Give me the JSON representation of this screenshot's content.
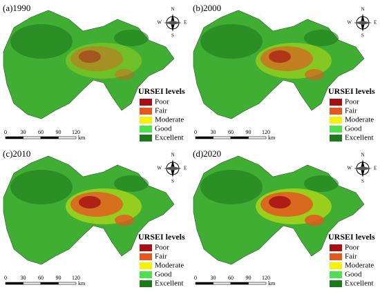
{
  "panels": [
    {
      "label": "(a)1990",
      "legend_title": "URSEI levels",
      "legend": [
        {
          "name": "Poor",
          "color": "#a50f15"
        },
        {
          "name": "Fair",
          "color": "#e4571e"
        },
        {
          "name": "Moderate",
          "color": "#f2f20a"
        },
        {
          "name": "Good",
          "color": "#4fe04f"
        },
        {
          "name": "Excellent",
          "color": "#1c7a1c"
        }
      ],
      "scale": {
        "labels": [
          0,
          30,
          60,
          90,
          120
        ],
        "unit": "km"
      },
      "compass": [
        "N",
        "E",
        "S",
        "W"
      ]
    },
    {
      "label": "(b)2000",
      "legend_title": "URSEI levels",
      "legend": [
        {
          "name": "Poor",
          "color": "#a50f15"
        },
        {
          "name": "Fair",
          "color": "#e4571e"
        },
        {
          "name": "Moderate",
          "color": "#f2f20a"
        },
        {
          "name": "Good",
          "color": "#4fe04f"
        },
        {
          "name": "Excellent",
          "color": "#1c7a1c"
        }
      ],
      "scale": {
        "labels": [
          0,
          30,
          60,
          90,
          120
        ],
        "unit": "km"
      },
      "compass": [
        "N",
        "E",
        "S",
        "W"
      ]
    },
    {
      "label": "(c)2010",
      "legend_title": "URSEI levels",
      "legend": [
        {
          "name": "Poor",
          "color": "#a50f15"
        },
        {
          "name": "Fair",
          "color": "#e4571e"
        },
        {
          "name": "Moderate",
          "color": "#f2f20a"
        },
        {
          "name": "Good",
          "color": "#4fe04f"
        },
        {
          "name": "Excellent",
          "color": "#1c7a1c"
        }
      ],
      "scale": {
        "labels": [
          0,
          30,
          60,
          90,
          120
        ],
        "unit": "km"
      },
      "compass": [
        "N",
        "E",
        "S",
        "W"
      ]
    },
    {
      "label": "(d)2020",
      "legend_title": "URSEI levels",
      "legend": [
        {
          "name": "Poor",
          "color": "#a50f15"
        },
        {
          "name": "Fair",
          "color": "#e4571e"
        },
        {
          "name": "Moderate",
          "color": "#f2f20a"
        },
        {
          "name": "Good",
          "color": "#4fe04f"
        },
        {
          "name": "Excellent",
          "color": "#1c7a1c"
        }
      ],
      "scale": {
        "labels": [
          0,
          30,
          60,
          90,
          120
        ],
        "unit": "km"
      },
      "compass": [
        "N",
        "E",
        "S",
        "W"
      ]
    }
  ]
}
